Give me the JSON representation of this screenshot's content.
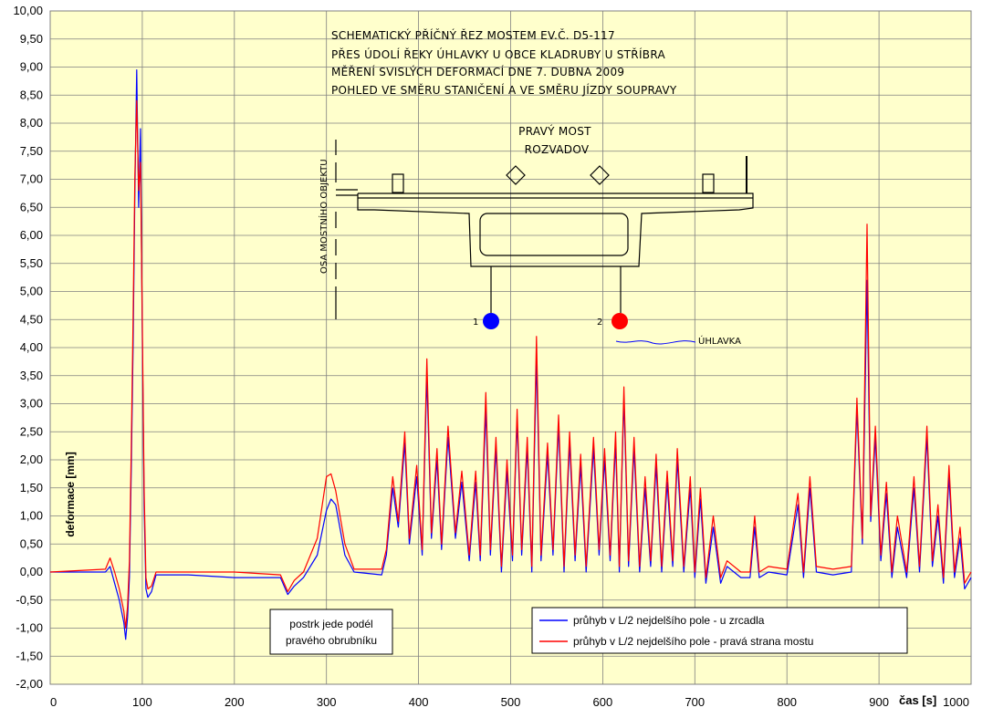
{
  "chart_data": {
    "type": "line",
    "xlabel": "čas [s]",
    "ylabel": "deformace [mm]",
    "xlim": [
      0,
      1000
    ],
    "ylim": [
      -2,
      10
    ],
    "x_ticks": [
      "0",
      "100",
      "200",
      "300",
      "400",
      "500",
      "600",
      "700",
      "800",
      "900",
      "1000"
    ],
    "y_ticks": [
      "-2,00",
      "-1,50",
      "-1,00",
      "-0,50",
      "0,00",
      "0,50",
      "1,00",
      "1,50",
      "2,00",
      "2,50",
      "3,00",
      "3,50",
      "4,00",
      "4,50",
      "5,00",
      "5,50",
      "6,00",
      "6,50",
      "7,00",
      "7,50",
      "8,00",
      "8,50",
      "9,00",
      "9,50",
      "10,00"
    ],
    "grid": true,
    "background": "#ffffcc",
    "legend_position": "bottom-right",
    "series": [
      {
        "name": "průhyb v L/2 nejdelšího pole  - u zrcadla",
        "color": "#0000ff",
        "points": [
          [
            0,
            0.0
          ],
          [
            60,
            0.0
          ],
          [
            65,
            0.1
          ],
          [
            70,
            -0.2
          ],
          [
            75,
            -0.5
          ],
          [
            80,
            -0.9
          ],
          [
            82,
            -1.2
          ],
          [
            84,
            -0.8
          ],
          [
            86,
            -0.1
          ],
          [
            88,
            1.8
          ],
          [
            90,
            4.0
          ],
          [
            92,
            6.8
          ],
          [
            94,
            8.95
          ],
          [
            96,
            6.5
          ],
          [
            98,
            7.9
          ],
          [
            100,
            4.2
          ],
          [
            102,
            1.2
          ],
          [
            104,
            -0.3
          ],
          [
            106,
            -0.45
          ],
          [
            110,
            -0.35
          ],
          [
            115,
            -0.05
          ],
          [
            150,
            -0.05
          ],
          [
            200,
            -0.1
          ],
          [
            250,
            -0.1
          ],
          [
            258,
            -0.4
          ],
          [
            265,
            -0.25
          ],
          [
            275,
            -0.1
          ],
          [
            290,
            0.3
          ],
          [
            300,
            1.1
          ],
          [
            305,
            1.3
          ],
          [
            310,
            1.2
          ],
          [
            320,
            0.3
          ],
          [
            330,
            0.0
          ],
          [
            360,
            -0.05
          ],
          [
            365,
            0.3
          ],
          [
            372,
            1.5
          ],
          [
            378,
            0.8
          ],
          [
            385,
            2.3
          ],
          [
            390,
            0.5
          ],
          [
            398,
            1.7
          ],
          [
            404,
            0.3
          ],
          [
            409,
            3.5
          ],
          [
            414,
            0.6
          ],
          [
            420,
            2.0
          ],
          [
            425,
            0.4
          ],
          [
            432,
            2.4
          ],
          [
            440,
            0.6
          ],
          [
            447,
            1.6
          ],
          [
            455,
            0.2
          ],
          [
            462,
            1.6
          ],
          [
            467,
            0.2
          ],
          [
            473,
            2.9
          ],
          [
            478,
            0.3
          ],
          [
            484,
            2.2
          ],
          [
            490,
            0.0
          ],
          [
            496,
            1.8
          ],
          [
            502,
            0.2
          ],
          [
            507,
            2.7
          ],
          [
            512,
            0.3
          ],
          [
            518,
            2.2
          ],
          [
            523,
            0.0
          ],
          [
            528,
            3.8
          ],
          [
            533,
            0.2
          ],
          [
            540,
            2.1
          ],
          [
            546,
            0.3
          ],
          [
            552,
            2.6
          ],
          [
            558,
            0.0
          ],
          [
            564,
            2.3
          ],
          [
            570,
            0.2
          ],
          [
            576,
            1.9
          ],
          [
            582,
            0.0
          ],
          [
            590,
            2.2
          ],
          [
            596,
            0.3
          ],
          [
            602,
            2.0
          ],
          [
            608,
            0.2
          ],
          [
            614,
            2.3
          ],
          [
            618,
            0.0
          ],
          [
            623,
            3.1
          ],
          [
            628,
            0.1
          ],
          [
            634,
            2.2
          ],
          [
            640,
            0.0
          ],
          [
            646,
            1.5
          ],
          [
            652,
            0.1
          ],
          [
            658,
            1.9
          ],
          [
            664,
            0.0
          ],
          [
            670,
            1.6
          ],
          [
            676,
            0.1
          ],
          [
            681,
            2.0
          ],
          [
            688,
            0.0
          ],
          [
            695,
            1.5
          ],
          [
            700,
            -0.1
          ],
          [
            706,
            1.3
          ],
          [
            712,
            -0.2
          ],
          [
            720,
            0.8
          ],
          [
            728,
            -0.2
          ],
          [
            735,
            0.1
          ],
          [
            750,
            -0.1
          ],
          [
            760,
            -0.1
          ],
          [
            765,
            0.8
          ],
          [
            770,
            -0.1
          ],
          [
            780,
            0.0
          ],
          [
            800,
            -0.05
          ],
          [
            812,
            1.2
          ],
          [
            818,
            -0.1
          ],
          [
            825,
            1.5
          ],
          [
            832,
            0.0
          ],
          [
            850,
            -0.05
          ],
          [
            870,
            0.0
          ],
          [
            876,
            2.9
          ],
          [
            882,
            0.5
          ],
          [
            887,
            5.2
          ],
          [
            891,
            0.9
          ],
          [
            896,
            2.4
          ],
          [
            902,
            0.2
          ],
          [
            908,
            1.4
          ],
          [
            914,
            -0.1
          ],
          [
            920,
            0.8
          ],
          [
            930,
            -0.1
          ],
          [
            938,
            1.5
          ],
          [
            944,
            0.0
          ],
          [
            952,
            2.4
          ],
          [
            958,
            0.1
          ],
          [
            964,
            1.0
          ],
          [
            970,
            -0.2
          ],
          [
            976,
            1.7
          ],
          [
            982,
            -0.1
          ],
          [
            988,
            0.6
          ],
          [
            993,
            -0.3
          ],
          [
            1000,
            -0.1
          ]
        ]
      },
      {
        "name": "průhyb v L/2 nejdelšího pole  - pravá strana mostu",
        "color": "#ff0000",
        "points": [
          [
            0,
            0.0
          ],
          [
            60,
            0.05
          ],
          [
            65,
            0.25
          ],
          [
            70,
            0.0
          ],
          [
            75,
            -0.3
          ],
          [
            80,
            -0.7
          ],
          [
            82,
            -1.0
          ],
          [
            84,
            -0.6
          ],
          [
            86,
            0.2
          ],
          [
            88,
            2.2
          ],
          [
            90,
            4.5
          ],
          [
            92,
            7.1
          ],
          [
            94,
            8.4
          ],
          [
            96,
            6.8
          ],
          [
            98,
            7.3
          ],
          [
            100,
            4.5
          ],
          [
            102,
            1.5
          ],
          [
            104,
            -0.1
          ],
          [
            106,
            -0.3
          ],
          [
            110,
            -0.25
          ],
          [
            115,
            0.0
          ],
          [
            150,
            0.0
          ],
          [
            200,
            0.0
          ],
          [
            250,
            -0.05
          ],
          [
            258,
            -0.35
          ],
          [
            265,
            -0.15
          ],
          [
            275,
            0.0
          ],
          [
            290,
            0.6
          ],
          [
            300,
            1.7
          ],
          [
            305,
            1.75
          ],
          [
            310,
            1.45
          ],
          [
            320,
            0.5
          ],
          [
            330,
            0.05
          ],
          [
            360,
            0.05
          ],
          [
            365,
            0.4
          ],
          [
            372,
            1.7
          ],
          [
            378,
            0.9
          ],
          [
            385,
            2.5
          ],
          [
            390,
            0.6
          ],
          [
            398,
            1.9
          ],
          [
            404,
            0.4
          ],
          [
            409,
            3.8
          ],
          [
            414,
            0.7
          ],
          [
            420,
            2.2
          ],
          [
            425,
            0.5
          ],
          [
            432,
            2.6
          ],
          [
            440,
            0.7
          ],
          [
            447,
            1.8
          ],
          [
            455,
            0.3
          ],
          [
            462,
            1.8
          ],
          [
            467,
            0.3
          ],
          [
            473,
            3.2
          ],
          [
            478,
            0.4
          ],
          [
            484,
            2.4
          ],
          [
            490,
            0.1
          ],
          [
            496,
            2.0
          ],
          [
            502,
            0.3
          ],
          [
            507,
            2.9
          ],
          [
            512,
            0.4
          ],
          [
            518,
            2.4
          ],
          [
            523,
            0.1
          ],
          [
            528,
            4.2
          ],
          [
            533,
            0.3
          ],
          [
            540,
            2.3
          ],
          [
            546,
            0.4
          ],
          [
            552,
            2.8
          ],
          [
            558,
            0.1
          ],
          [
            564,
            2.5
          ],
          [
            570,
            0.3
          ],
          [
            576,
            2.1
          ],
          [
            582,
            0.1
          ],
          [
            590,
            2.4
          ],
          [
            596,
            0.4
          ],
          [
            602,
            2.2
          ],
          [
            608,
            0.3
          ],
          [
            614,
            2.5
          ],
          [
            618,
            0.1
          ],
          [
            623,
            3.3
          ],
          [
            628,
            0.2
          ],
          [
            634,
            2.4
          ],
          [
            640,
            0.1
          ],
          [
            646,
            1.7
          ],
          [
            652,
            0.2
          ],
          [
            658,
            2.1
          ],
          [
            664,
            0.1
          ],
          [
            670,
            1.8
          ],
          [
            676,
            0.2
          ],
          [
            681,
            2.2
          ],
          [
            688,
            0.1
          ],
          [
            695,
            1.7
          ],
          [
            700,
            0.0
          ],
          [
            706,
            1.5
          ],
          [
            712,
            -0.1
          ],
          [
            720,
            1.0
          ],
          [
            728,
            -0.1
          ],
          [
            735,
            0.2
          ],
          [
            750,
            0.0
          ],
          [
            760,
            0.0
          ],
          [
            765,
            1.0
          ],
          [
            770,
            0.0
          ],
          [
            780,
            0.1
          ],
          [
            800,
            0.05
          ],
          [
            812,
            1.4
          ],
          [
            818,
            0.0
          ],
          [
            825,
            1.7
          ],
          [
            832,
            0.1
          ],
          [
            850,
            0.05
          ],
          [
            870,
            0.1
          ],
          [
            876,
            3.1
          ],
          [
            882,
            0.6
          ],
          [
            887,
            6.2
          ],
          [
            891,
            1.0
          ],
          [
            896,
            2.6
          ],
          [
            902,
            0.3
          ],
          [
            908,
            1.6
          ],
          [
            914,
            0.0
          ],
          [
            920,
            1.0
          ],
          [
            930,
            0.0
          ],
          [
            938,
            1.7
          ],
          [
            944,
            0.1
          ],
          [
            952,
            2.6
          ],
          [
            958,
            0.2
          ],
          [
            964,
            1.2
          ],
          [
            970,
            -0.1
          ],
          [
            976,
            1.9
          ],
          [
            982,
            0.0
          ],
          [
            988,
            0.8
          ],
          [
            993,
            -0.2
          ],
          [
            1000,
            0.0
          ]
        ]
      }
    ],
    "annotations": {
      "title_lines": [
        "SCHEMATICKÝ PŘÍČNÝ ŘEZ MOSTEM EV.Č. D5-117",
        "PŘES ÚDOLÍ ŘEKY ÚHLAVKY U OBCE KLADRUBY U STŘÍBRA",
        "MĚŘENÍ SVISLÝCH DEFORMACÍ DNE 7. DUBNA 2009",
        "POHLED VE SMĚRU STANIČENÍ A VE SMĚRU JÍZDY SOUPRAVY"
      ],
      "bridge_label_1": "PRAVÝ MOST",
      "bridge_label_2": "ROZVADOV",
      "axis_label": "OSA MOSTNÍHO OBJEKTU",
      "sensor_1": "1",
      "sensor_2": "2",
      "river": "ÚHLAVKA",
      "note_line_1": "postrk jede podél",
      "note_line_2": "pravého obrubníku"
    }
  }
}
